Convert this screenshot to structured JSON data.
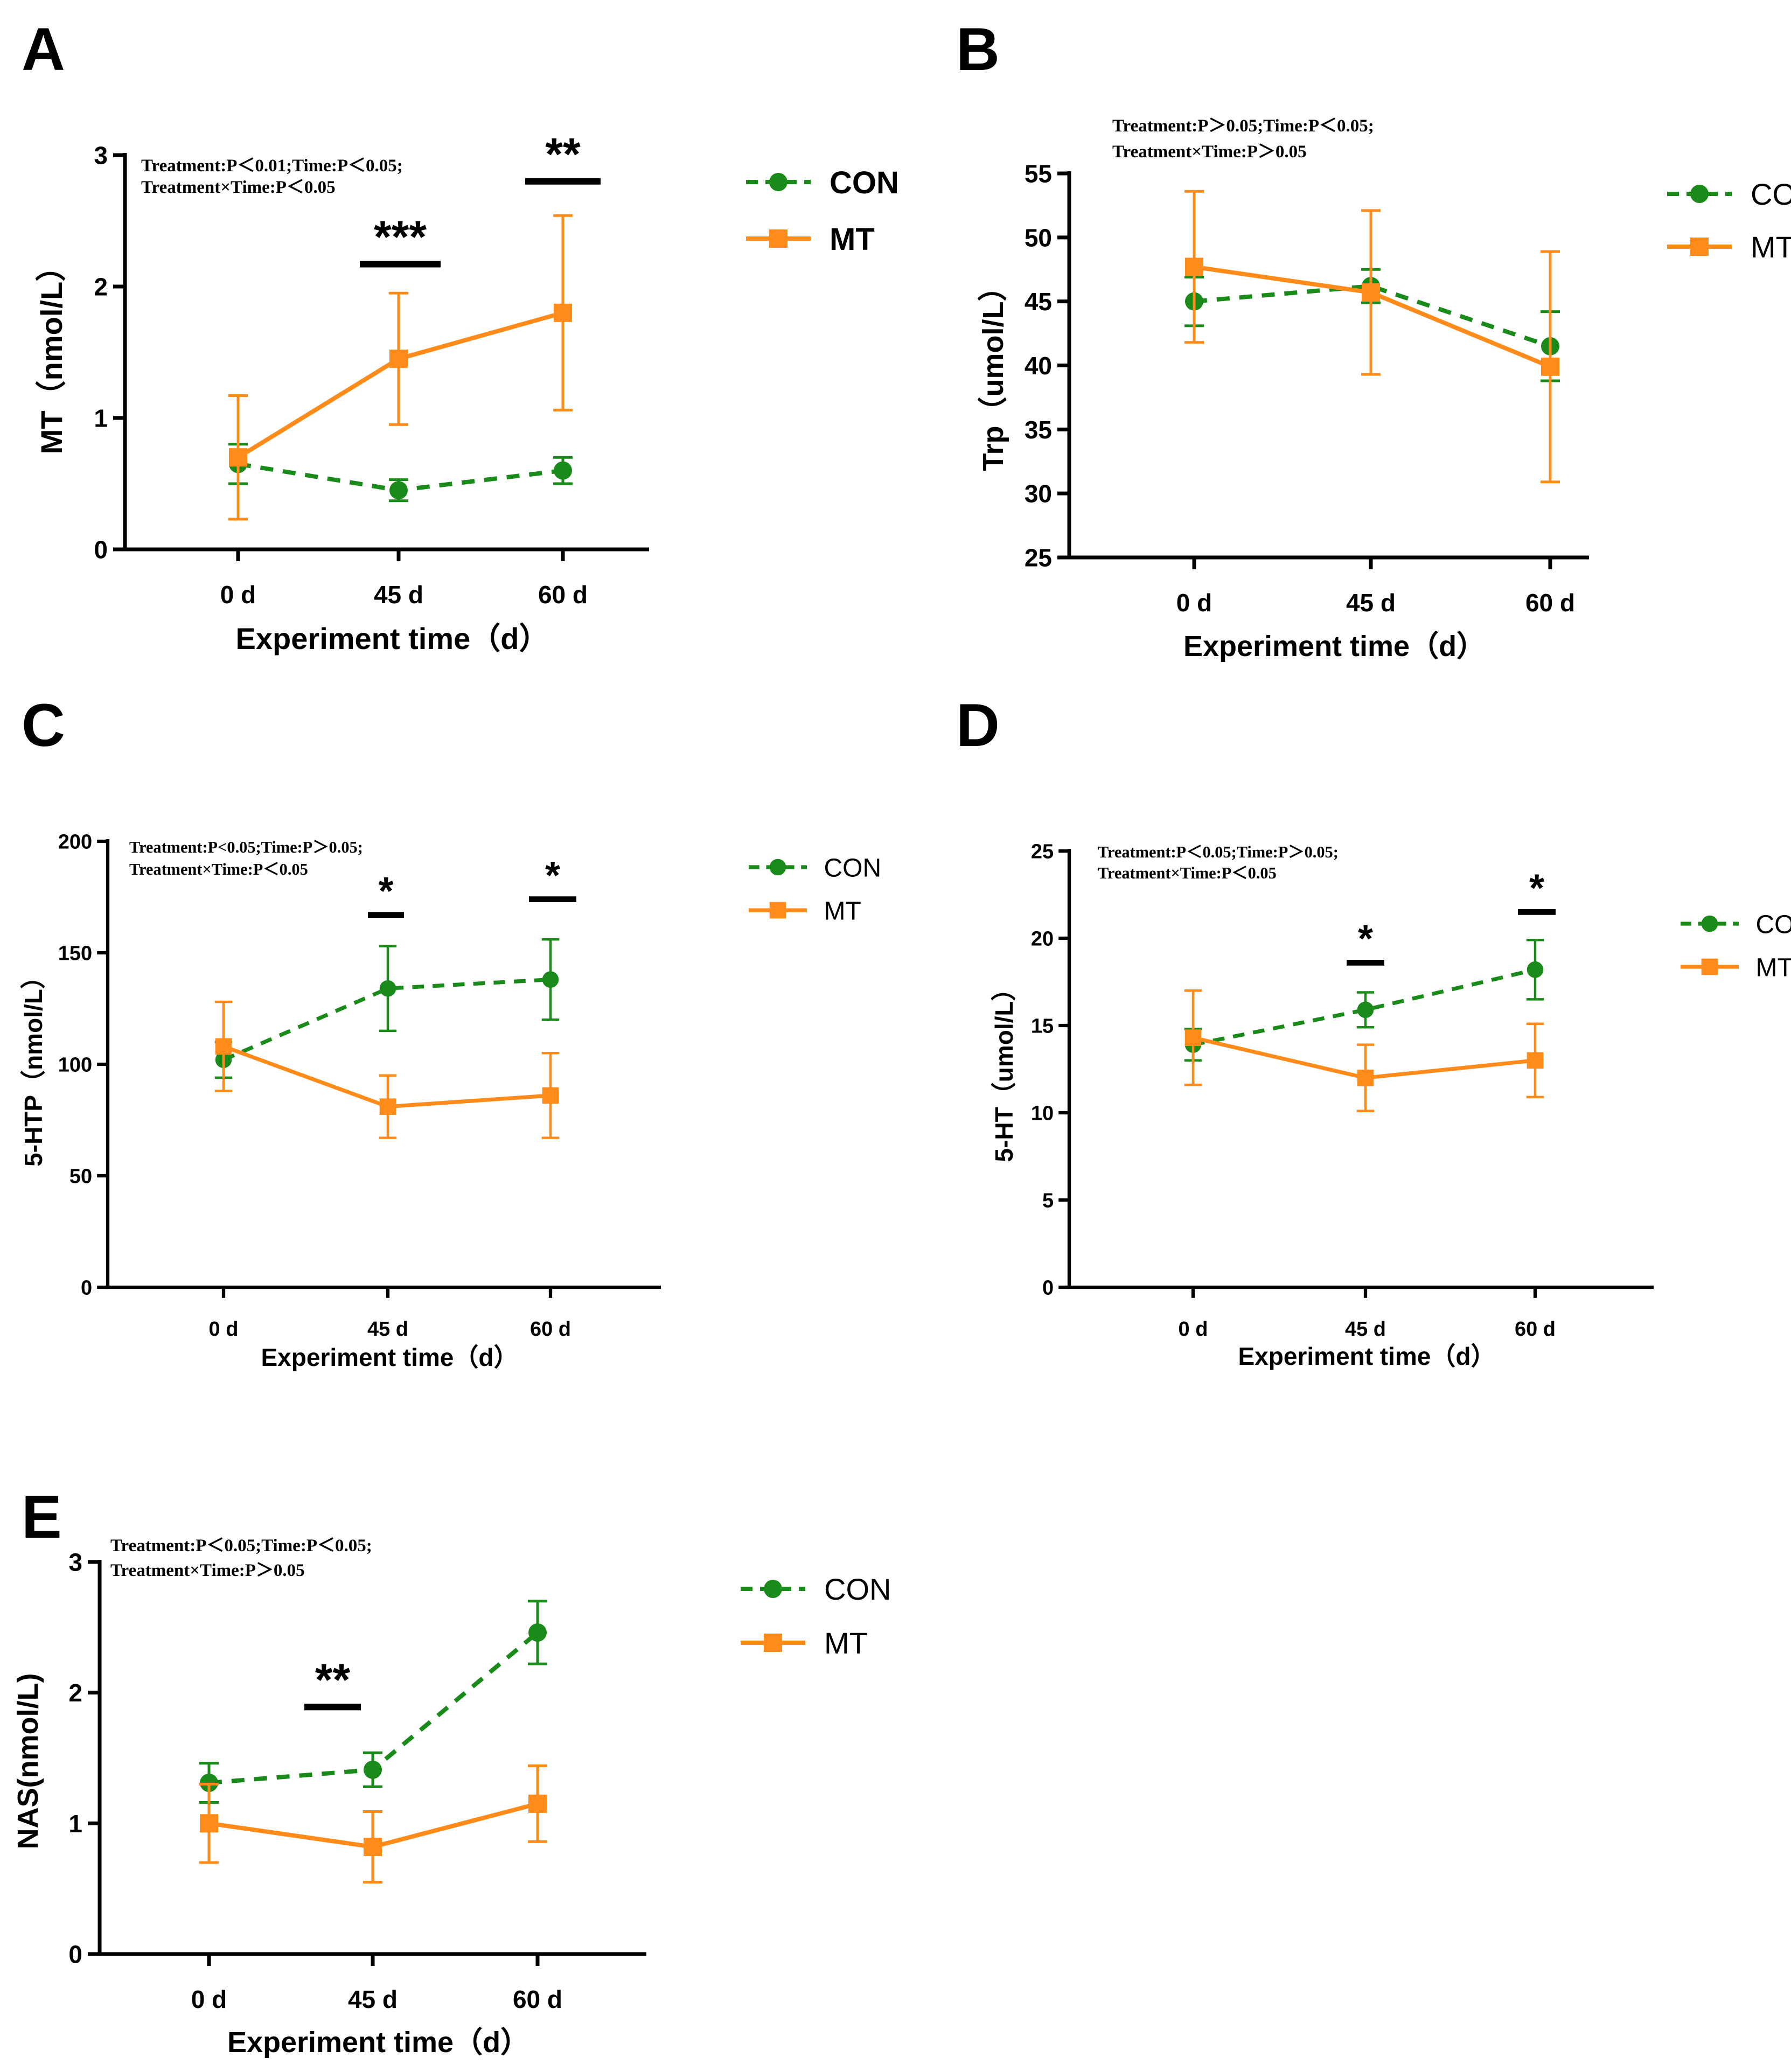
{
  "colors": {
    "con": "#1a8a1a",
    "mt": "#ff8c1a",
    "axis": "#000000"
  },
  "chart_data": [
    {
      "id": "A",
      "type": "line",
      "panel_label": "A",
      "title": "",
      "xlabel": "Experiment time（d）",
      "ylabel": "MT（nmol/L）",
      "categories": [
        "0 d",
        "45 d",
        "60 d"
      ],
      "ylim": [
        0,
        3
      ],
      "yticks": [
        0,
        1,
        2,
        3
      ],
      "stats": [
        "Treatment:P＜0.01;Time:P＜0.05;",
        "Treatment×Time:P＜0.05"
      ],
      "series": [
        {
          "name": "CON",
          "values": [
            0.65,
            0.45,
            0.6
          ],
          "errors": [
            0.15,
            0.08,
            0.1
          ],
          "marker": "circle",
          "dashed": true
        },
        {
          "name": "MT",
          "values": [
            0.7,
            1.45,
            1.8
          ],
          "errors": [
            0.47,
            0.5,
            0.74
          ],
          "marker": "square",
          "dashed": false
        }
      ],
      "significance": [
        {
          "category": "45 d",
          "label": "***",
          "y": 2.17
        },
        {
          "category": "60 d",
          "label": "**",
          "y": 2.8
        }
      ]
    },
    {
      "id": "B",
      "type": "line",
      "panel_label": "B",
      "title": "",
      "xlabel": "Experiment time（d）",
      "ylabel": "Trp（umol/L）",
      "categories": [
        "0 d",
        "45 d",
        "60 d"
      ],
      "ylim": [
        25,
        55
      ],
      "yticks": [
        25,
        30,
        35,
        40,
        45,
        50,
        55
      ],
      "stats": [
        "Treatment:P＞0.05;Time:P＜0.05;",
        "Treatment×Time:P＞0.05"
      ],
      "series": [
        {
          "name": "CON",
          "values": [
            45.0,
            46.2,
            41.5
          ],
          "errors": [
            1.9,
            1.3,
            2.7
          ],
          "marker": "circle",
          "dashed": true
        },
        {
          "name": "MT",
          "values": [
            47.7,
            45.7,
            39.9
          ],
          "errors": [
            5.9,
            6.4,
            9.0
          ],
          "marker": "square",
          "dashed": false
        }
      ],
      "significance": []
    },
    {
      "id": "C",
      "type": "line",
      "panel_label": "C",
      "title": "",
      "xlabel": "Experiment time（d）",
      "ylabel": "5-HTP（nmol/L）",
      "categories": [
        "0 d",
        "45 d",
        "60 d"
      ],
      "ylim": [
        0,
        200
      ],
      "yticks": [
        0,
        50,
        100,
        150,
        200
      ],
      "stats": [
        "Treatment:P<0.05;Time:P＞0.05;",
        "Treatment×Time:P＜0.05"
      ],
      "series": [
        {
          "name": "CON",
          "values": [
            102,
            134,
            138
          ],
          "errors": [
            8,
            19,
            18
          ],
          "marker": "circle",
          "dashed": true
        },
        {
          "name": "MT",
          "values": [
            108,
            81,
            86
          ],
          "errors": [
            20,
            14,
            19
          ],
          "marker": "square",
          "dashed": false
        }
      ],
      "significance": [
        {
          "category": "45 d",
          "label": "*",
          "y": 167
        },
        {
          "category": "60 d",
          "label": "*",
          "y": 174
        }
      ]
    },
    {
      "id": "D",
      "type": "line",
      "panel_label": "D",
      "title": "",
      "xlabel": "Experiment time（d）",
      "ylabel": "5-HT（umol/L）",
      "categories": [
        "0 d",
        "45 d",
        "60 d"
      ],
      "ylim": [
        0,
        25
      ],
      "yticks": [
        0,
        5,
        10,
        15,
        20,
        25
      ],
      "stats": [
        "Treatment:P＜0.05;Time:P＞0.05;",
        "Treatment×Time:P＜0.05"
      ],
      "series": [
        {
          "name": "CON",
          "values": [
            13.9,
            15.9,
            18.2
          ],
          "errors": [
            0.9,
            1.0,
            1.7
          ],
          "marker": "circle",
          "dashed": true
        },
        {
          "name": "MT",
          "values": [
            14.3,
            12.0,
            13.0
          ],
          "errors": [
            2.7,
            1.9,
            2.1
          ],
          "marker": "square",
          "dashed": false
        }
      ],
      "significance": [
        {
          "category": "45 d",
          "label": "*",
          "y": 18.6
        },
        {
          "category": "60 d",
          "label": "*",
          "y": 21.5
        }
      ]
    },
    {
      "id": "E",
      "type": "line",
      "panel_label": "E",
      "title": "",
      "xlabel": "Experiment time（d）",
      "ylabel": "NAS(nmol/L)",
      "categories": [
        "0 d",
        "45 d",
        "60 d"
      ],
      "ylim": [
        0,
        3
      ],
      "yticks": [
        0,
        1,
        2,
        3
      ],
      "stats": [
        "Treatment:P＜0.05;Time:P＜0.05;",
        "Treatment×Time:P＞0.05"
      ],
      "series": [
        {
          "name": "CON",
          "values": [
            1.31,
            1.41,
            2.46
          ],
          "errors": [
            0.15,
            0.13,
            0.24
          ],
          "marker": "circle",
          "dashed": true
        },
        {
          "name": "MT",
          "values": [
            1.0,
            0.82,
            1.15
          ],
          "errors": [
            0.3,
            0.27,
            0.29
          ],
          "marker": "square",
          "dashed": false
        }
      ],
      "significance": [
        {
          "category": "between 0 d and 45 d",
          "label": "**",
          "y": 1.89
        }
      ]
    }
  ]
}
